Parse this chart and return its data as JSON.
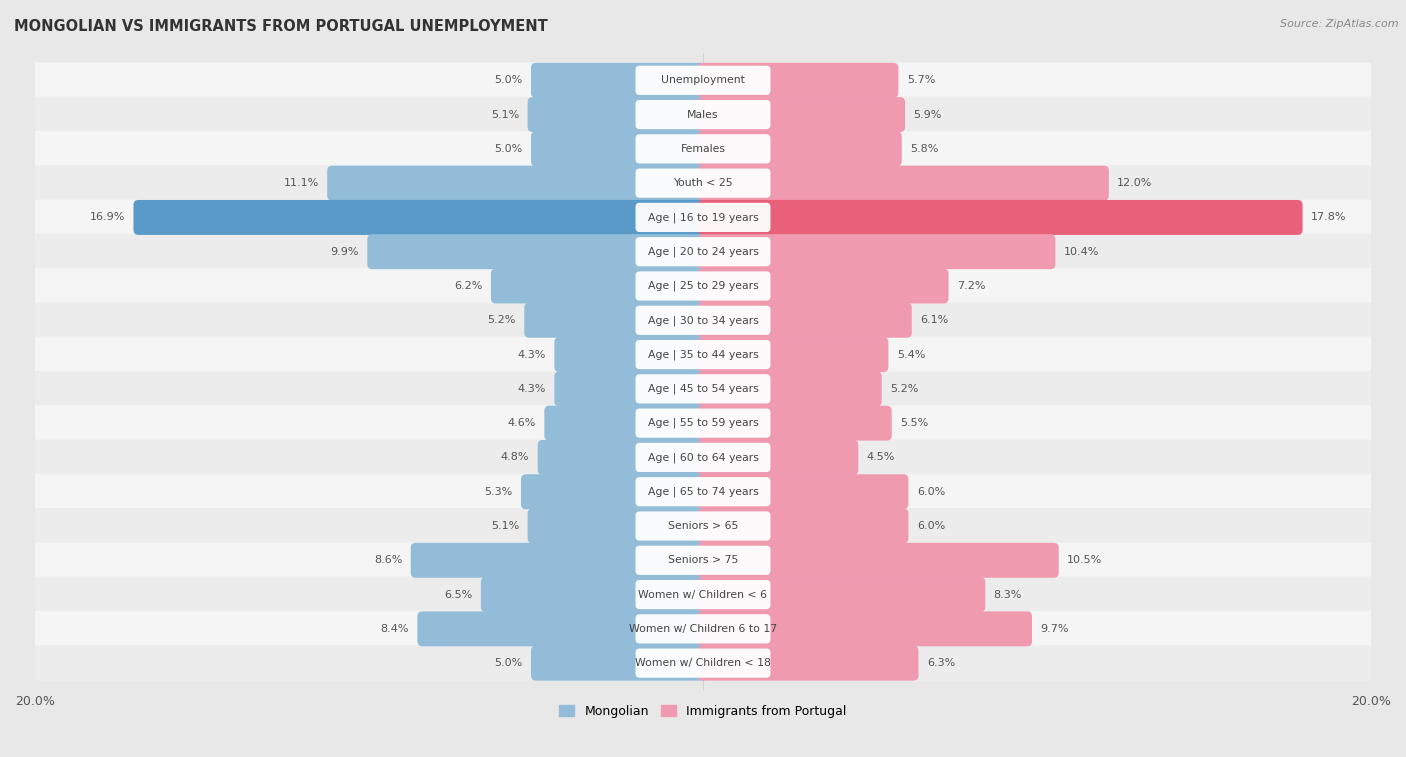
{
  "title": "MONGOLIAN VS IMMIGRANTS FROM PORTUGAL UNEMPLOYMENT",
  "source": "Source: ZipAtlas.com",
  "categories": [
    "Unemployment",
    "Males",
    "Females",
    "Youth < 25",
    "Age | 16 to 19 years",
    "Age | 20 to 24 years",
    "Age | 25 to 29 years",
    "Age | 30 to 34 years",
    "Age | 35 to 44 years",
    "Age | 45 to 54 years",
    "Age | 55 to 59 years",
    "Age | 60 to 64 years",
    "Age | 65 to 74 years",
    "Seniors > 65",
    "Seniors > 75",
    "Women w/ Children < 6",
    "Women w/ Children 6 to 17",
    "Women w/ Children < 18"
  ],
  "mongolian": [
    5.0,
    5.1,
    5.0,
    11.1,
    16.9,
    9.9,
    6.2,
    5.2,
    4.3,
    4.3,
    4.6,
    4.8,
    5.3,
    5.1,
    8.6,
    6.5,
    8.4,
    5.0
  ],
  "portugal": [
    5.7,
    5.9,
    5.8,
    12.0,
    17.8,
    10.4,
    7.2,
    6.1,
    5.4,
    5.2,
    5.5,
    4.5,
    6.0,
    6.0,
    10.5,
    8.3,
    9.7,
    6.3
  ],
  "mongolian_color": "#92bcd8",
  "portugal_color": "#f09ab0",
  "mongolian_color_highlight": "#5a9ac8",
  "portugal_color_highlight": "#e8607a",
  "row_color_odd": "#f2f2f2",
  "row_color_even": "#e8e8e8",
  "background_color": "#e8e8e8",
  "xlim": 20.0,
  "legend_mongolian": "Mongolian",
  "legend_portugal": "Immigrants from Portugal"
}
